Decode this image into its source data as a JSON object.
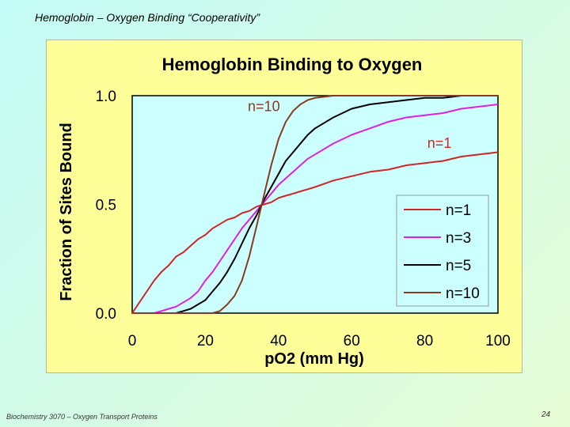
{
  "slide": {
    "title": "Hemoglobin – Oxygen Binding “Cooperativity”",
    "footer": "Biochemistry 3070 – Oxygen Transport Proteins",
    "page_number": "24"
  },
  "chart_data": {
    "type": "line",
    "title": "Hemoglobin Binding to Oxygen",
    "xlabel": "pO2 (mm Hg)",
    "ylabel": "Fraction of Sites Bound",
    "xlim": [
      0,
      100
    ],
    "ylim": [
      0,
      1
    ],
    "x_ticks": [
      "0",
      "20",
      "40",
      "60",
      "80",
      "100"
    ],
    "y_ticks": [
      "0.0",
      "0.5",
      "1.0"
    ],
    "plot_background": "#ccffff",
    "panel_background": "#ffff99",
    "legend_position": "bottom-right",
    "grid": false,
    "x": [
      0,
      2,
      4,
      6,
      8,
      10,
      12,
      14,
      16,
      18,
      20,
      22,
      24,
      26,
      28,
      30,
      32,
      34,
      36,
      38,
      40,
      42,
      44,
      46,
      48,
      50,
      55,
      60,
      65,
      70,
      75,
      80,
      85,
      90,
      95,
      100
    ],
    "series": [
      {
        "name": "n=1",
        "color": "#d42424",
        "values": [
          0.0,
          0.05,
          0.1,
          0.15,
          0.19,
          0.22,
          0.26,
          0.28,
          0.31,
          0.34,
          0.36,
          0.39,
          0.41,
          0.43,
          0.44,
          0.46,
          0.47,
          0.49,
          0.5,
          0.51,
          0.53,
          0.54,
          0.55,
          0.56,
          0.57,
          0.58,
          0.61,
          0.63,
          0.65,
          0.66,
          0.68,
          0.69,
          0.7,
          0.72,
          0.73,
          0.74
        ]
      },
      {
        "name": "n=3",
        "color": "#e020e0",
        "values": [
          0.0,
          0.0,
          0.0,
          0.0,
          0.01,
          0.02,
          0.03,
          0.05,
          0.07,
          0.1,
          0.15,
          0.19,
          0.24,
          0.29,
          0.34,
          0.39,
          0.43,
          0.47,
          0.51,
          0.55,
          0.59,
          0.62,
          0.65,
          0.68,
          0.71,
          0.73,
          0.78,
          0.82,
          0.85,
          0.88,
          0.9,
          0.91,
          0.92,
          0.94,
          0.95,
          0.96
        ]
      },
      {
        "name": "n=5",
        "color": "#000000",
        "values": [
          0.0,
          0.0,
          0.0,
          0.0,
          0.0,
          0.0,
          0.0,
          0.01,
          0.02,
          0.04,
          0.06,
          0.1,
          0.14,
          0.19,
          0.25,
          0.32,
          0.39,
          0.45,
          0.52,
          0.58,
          0.64,
          0.7,
          0.74,
          0.78,
          0.82,
          0.85,
          0.9,
          0.94,
          0.96,
          0.97,
          0.98,
          0.99,
          0.99,
          1.0,
          1.0,
          1.0
        ]
      },
      {
        "name": "n=10",
        "color": "#8b3a1e",
        "values": [
          0.0,
          0.0,
          0.0,
          0.0,
          0.0,
          0.0,
          0.0,
          0.0,
          0.0,
          0.0,
          0.0,
          0.0,
          0.01,
          0.04,
          0.08,
          0.15,
          0.26,
          0.4,
          0.54,
          0.68,
          0.8,
          0.88,
          0.93,
          0.96,
          0.98,
          0.99,
          1.0,
          1.0,
          1.0,
          1.0,
          1.0,
          1.0,
          1.0,
          1.0,
          1.0,
          1.0
        ]
      }
    ],
    "annotations": [
      {
        "text": "n=10",
        "x": 36,
        "y": 0.93,
        "color": "#8b3a1e"
      },
      {
        "text": "n=1",
        "x": 84,
        "y": 0.76,
        "color": "#d42424"
      }
    ]
  }
}
